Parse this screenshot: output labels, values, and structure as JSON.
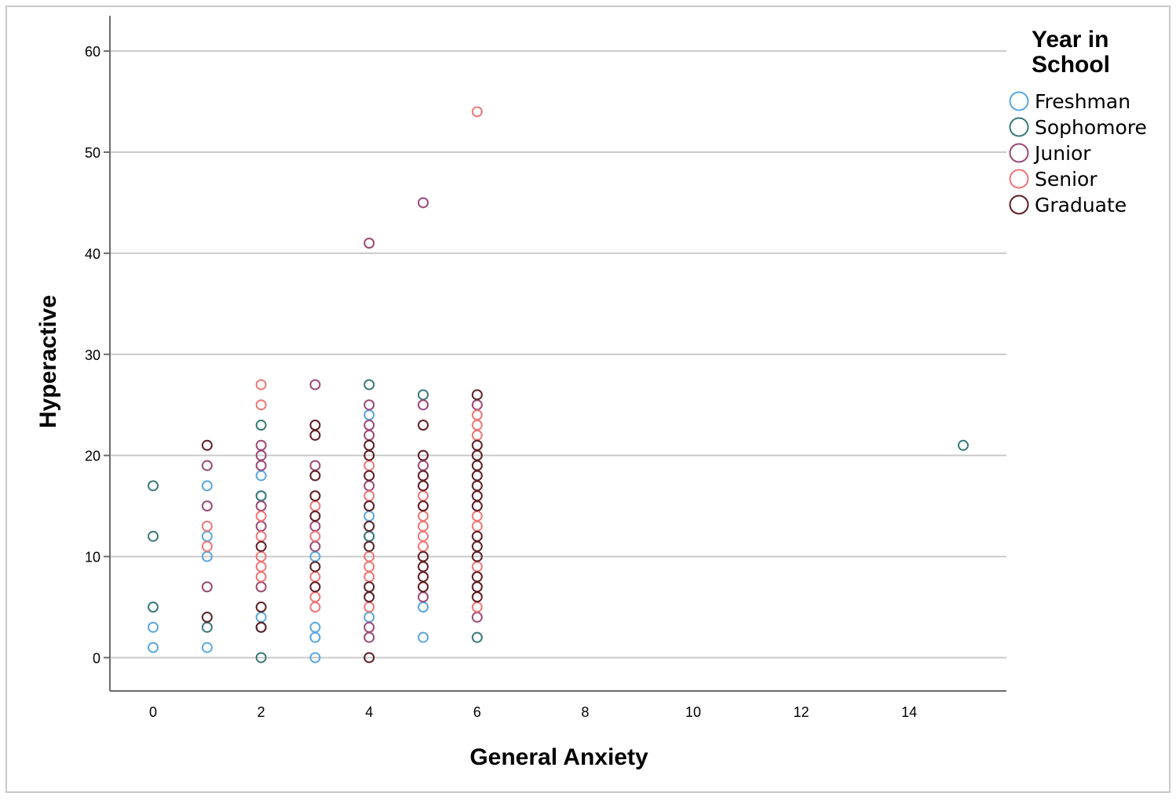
{
  "chart_data": {
    "type": "scatter",
    "title": "",
    "xlabel": "General Anxiety",
    "ylabel": "Hyperactive",
    "xlim": [
      -0.8,
      15.8
    ],
    "ylim": [
      -3.3,
      63.5
    ],
    "xticks": [
      0,
      2,
      4,
      6,
      8,
      10,
      12,
      14
    ],
    "yticks": [
      0,
      10,
      20,
      30,
      40,
      50,
      60
    ],
    "grid": "horizontal",
    "legend": {
      "title_lines": [
        "Year in",
        "School"
      ],
      "placement": "right"
    },
    "series": [
      {
        "name": "Freshman",
        "color": "#5aa7e0",
        "points": [
          [
            0,
            1
          ],
          [
            0,
            3
          ],
          [
            1,
            1
          ],
          [
            1,
            10
          ],
          [
            1,
            12
          ],
          [
            1,
            17
          ],
          [
            2,
            4
          ],
          [
            2,
            16
          ],
          [
            2,
            18
          ],
          [
            3,
            0
          ],
          [
            3,
            2
          ],
          [
            3,
            3
          ],
          [
            3,
            10
          ],
          [
            4,
            4
          ],
          [
            4,
            12
          ],
          [
            4,
            14
          ],
          [
            4,
            24
          ],
          [
            5,
            2
          ],
          [
            5,
            5
          ]
        ]
      },
      {
        "name": "Sophomore",
        "color": "#3a7a7a",
        "points": [
          [
            0,
            5
          ],
          [
            0,
            12
          ],
          [
            0,
            17
          ],
          [
            1,
            3
          ],
          [
            2,
            0
          ],
          [
            2,
            3
          ],
          [
            2,
            16
          ],
          [
            2,
            23
          ],
          [
            4,
            12
          ],
          [
            4,
            27
          ],
          [
            5,
            26
          ],
          [
            6,
            2
          ],
          [
            15,
            21
          ]
        ]
      },
      {
        "name": "Junior",
        "color": "#9c4a78",
        "points": [
          [
            1,
            7
          ],
          [
            1,
            15
          ],
          [
            1,
            19
          ],
          [
            2,
            7
          ],
          [
            2,
            13
          ],
          [
            2,
            15
          ],
          [
            2,
            19
          ],
          [
            2,
            20
          ],
          [
            2,
            21
          ],
          [
            3,
            11
          ],
          [
            3,
            13
          ],
          [
            3,
            19
          ],
          [
            3,
            27
          ],
          [
            4,
            2
          ],
          [
            4,
            3
          ],
          [
            4,
            17
          ],
          [
            4,
            22
          ],
          [
            4,
            23
          ],
          [
            4,
            25
          ],
          [
            4,
            41
          ],
          [
            5,
            6
          ],
          [
            5,
            19
          ],
          [
            5,
            25
          ],
          [
            5,
            45
          ],
          [
            6,
            4
          ],
          [
            6,
            25
          ]
        ]
      },
      {
        "name": "Senior",
        "color": "#ee7777",
        "points": [
          [
            1,
            11
          ],
          [
            1,
            13
          ],
          [
            2,
            8
          ],
          [
            2,
            9
          ],
          [
            2,
            10
          ],
          [
            2,
            12
          ],
          [
            2,
            14
          ],
          [
            2,
            25
          ],
          [
            2,
            27
          ],
          [
            3,
            5
          ],
          [
            3,
            6
          ],
          [
            3,
            8
          ],
          [
            3,
            12
          ],
          [
            3,
            15
          ],
          [
            4,
            5
          ],
          [
            4,
            8
          ],
          [
            4,
            9
          ],
          [
            4,
            10
          ],
          [
            4,
            16
          ],
          [
            4,
            19
          ],
          [
            5,
            11
          ],
          [
            5,
            12
          ],
          [
            5,
            13
          ],
          [
            5,
            14
          ],
          [
            5,
            16
          ],
          [
            6,
            5
          ],
          [
            6,
            9
          ],
          [
            6,
            13
          ],
          [
            6,
            14
          ],
          [
            6,
            22
          ],
          [
            6,
            23
          ],
          [
            6,
            24
          ],
          [
            6,
            54
          ]
        ]
      },
      {
        "name": "Graduate",
        "color": "#5e1f24",
        "points": [
          [
            1,
            4
          ],
          [
            1,
            21
          ],
          [
            2,
            3
          ],
          [
            2,
            5
          ],
          [
            2,
            11
          ],
          [
            3,
            7
          ],
          [
            3,
            9
          ],
          [
            3,
            14
          ],
          [
            3,
            16
          ],
          [
            3,
            18
          ],
          [
            3,
            22
          ],
          [
            3,
            23
          ],
          [
            4,
            0
          ],
          [
            4,
            6
          ],
          [
            4,
            7
          ],
          [
            4,
            11
          ],
          [
            4,
            13
          ],
          [
            4,
            15
          ],
          [
            4,
            18
          ],
          [
            4,
            20
          ],
          [
            4,
            21
          ],
          [
            5,
            7
          ],
          [
            5,
            8
          ],
          [
            5,
            9
          ],
          [
            5,
            10
          ],
          [
            5,
            15
          ],
          [
            5,
            17
          ],
          [
            5,
            18
          ],
          [
            5,
            20
          ],
          [
            5,
            23
          ],
          [
            6,
            6
          ],
          [
            6,
            7
          ],
          [
            6,
            8
          ],
          [
            6,
            10
          ],
          [
            6,
            11
          ],
          [
            6,
            12
          ],
          [
            6,
            15
          ],
          [
            6,
            16
          ],
          [
            6,
            17
          ],
          [
            6,
            18
          ],
          [
            6,
            19
          ],
          [
            6,
            20
          ],
          [
            6,
            21
          ],
          [
            6,
            26
          ]
        ]
      }
    ]
  }
}
